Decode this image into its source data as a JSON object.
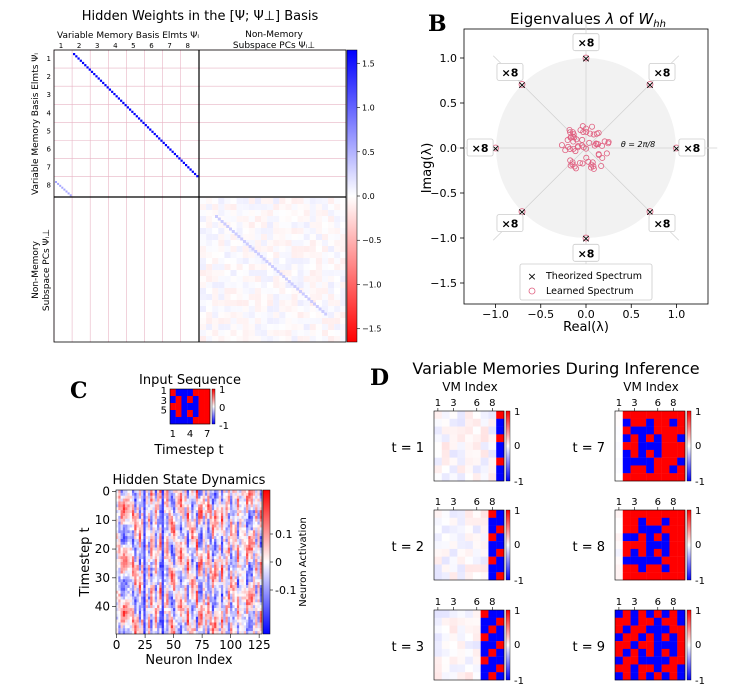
{
  "chart_data": [
    {
      "id": "A",
      "type": "heatmap",
      "title": "Hidden Weights in the [Ψ; Ψ⊥] Basis",
      "top_left_label": "Variable Memory Basis Elmts Ψᵢ",
      "top_right_label_1": "Non-Memory",
      "top_right_label_2": "Subspace PCs Ψᵢ⊥",
      "left_top_label": "Variable Memory Basis Elmts Ψᵢ",
      "left_bottom_label_1": "Non-Memory",
      "left_bottom_label_2": "Subspace PCs Ψᵢ⊥",
      "memory_indices": [
        "1",
        "2",
        "3",
        "4",
        "5",
        "6",
        "7",
        "8"
      ],
      "colorbar": {
        "ticks": [
          1.5,
          1.0,
          0.5,
          0.0,
          -0.5,
          -1.0,
          -1.5
        ],
        "tick_labels": [
          "1.5",
          "1.0",
          "0.5",
          "0.0",
          "−0.5",
          "−1.0",
          "−1.5"
        ],
        "range": [
          -1.65,
          1.65
        ],
        "cmap": "bwr_r"
      }
    },
    {
      "id": "B",
      "type": "scatter",
      "title_prefix": "Eigenvalues ",
      "title_lambda": "λ",
      "title_of": " of ",
      "title_W": "W",
      "title_sub": "hh",
      "xlabel": "Real(λ)",
      "ylabel": "Imag(λ)",
      "xlim": [
        -1.35,
        1.35
      ],
      "ylim": [
        -1.75,
        1.35
      ],
      "xticks": [
        -1.0,
        -0.5,
        0.0,
        0.5,
        1.0
      ],
      "xtick_labels": [
        "−1.0",
        "−0.5",
        "0.0",
        "0.5",
        "1.0"
      ],
      "yticks": [
        1.0,
        0.5,
        0.0,
        -0.5,
        -1.0,
        -1.5
      ],
      "ytick_labels": [
        "1.0",
        "0.5",
        "0.0",
        "−0.5",
        "−1.0",
        "−1.5"
      ],
      "theorized_spectrum": [
        [
          1.0,
          0.0
        ],
        [
          0.707,
          0.707
        ],
        [
          0.0,
          1.0
        ],
        [
          -0.707,
          0.707
        ],
        [
          -1.0,
          0.0
        ],
        [
          -0.707,
          -0.707
        ],
        [
          0.0,
          -1.0
        ],
        [
          0.707,
          -0.707
        ]
      ],
      "multiplicity_label": "×8",
      "theta_label": "θ = 2π/8",
      "unit_disk_radius": 1.0,
      "legend": [
        "Theorized Spectrum",
        "Learned Spectrum"
      ],
      "learned_spectrum_note": "cloud of ~60 eigenvalues with |λ| < 0.3"
    },
    {
      "id": "C1",
      "type": "heatmap",
      "title": "Input Sequence",
      "xlabel": "Timestep t",
      "xtick_labels": [
        "1",
        "4",
        "7"
      ],
      "ytick_labels": [
        "1",
        "3",
        "5"
      ],
      "colorbar_labels": [
        "1",
        "0",
        "-1"
      ],
      "grid": [
        [
          1,
          -1,
          -1,
          -1,
          1,
          1,
          1
        ],
        [
          -1,
          1,
          -1,
          1,
          -1,
          1,
          1
        ],
        [
          1,
          1,
          -1,
          -1,
          -1,
          1,
          1
        ],
        [
          -1,
          1,
          -1,
          1,
          -1,
          1,
          1
        ],
        [
          -1,
          -1,
          -1,
          -1,
          1,
          1,
          1
        ]
      ]
    },
    {
      "id": "C2",
      "type": "heatmap",
      "title": "Hidden State Dynamics",
      "xlabel": "Neuron Index",
      "ylabel": "Timestep t",
      "xticks": [
        0,
        25,
        50,
        75,
        100,
        125
      ],
      "yticks": [
        0,
        10,
        20,
        30,
        40
      ],
      "colorbar_label": "Neuron Activation",
      "colorbar_ticks": [
        0.1,
        0,
        -0.1
      ],
      "colorbar_tick_labels": [
        "0.1",
        "0",
        "-0.1"
      ]
    },
    {
      "id": "D",
      "type": "heatmap",
      "title": "Variable Memories During Inference",
      "xlabel": "VM Index",
      "xtick_labels": [
        "1",
        "3",
        "6",
        "8"
      ],
      "colorbar_labels": [
        "1",
        "0",
        "-1"
      ],
      "timesteps": [
        "t = 1",
        "t = 2",
        "t = 3",
        "t = 7",
        "t = 8",
        "t = 9"
      ],
      "n_filled_columns": [
        1,
        2,
        3,
        7,
        8,
        9
      ]
    }
  ],
  "panel_letters": [
    "B",
    "C",
    "D"
  ]
}
